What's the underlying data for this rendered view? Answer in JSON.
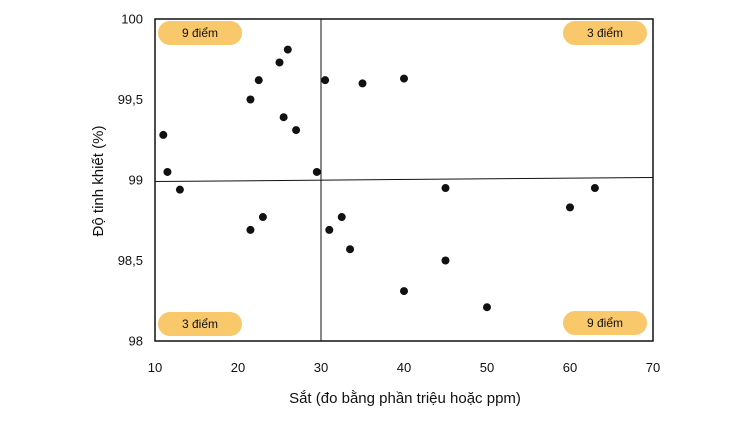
{
  "chart_data": {
    "type": "scatter",
    "xlabel": "Sắt (đo bằng phần triệu hoặc ppm)",
    "ylabel": "Độ tinh khiết (%)",
    "xlim": [
      10,
      70
    ],
    "ylim": [
      98,
      100
    ],
    "x_ticks": [
      10,
      20,
      30,
      40,
      50,
      60,
      70
    ],
    "x_tick_labels": [
      "10",
      "20",
      "30",
      "40",
      "50",
      "60",
      "70"
    ],
    "y_ticks": [
      98,
      98.5,
      99,
      99.5,
      100
    ],
    "y_tick_labels": [
      "98",
      "98,5",
      "99",
      "99,5",
      "100"
    ],
    "grid": false,
    "reference_lines": {
      "vertical_x": 30,
      "horizontal_y": 99
    },
    "points": [
      {
        "x": 11.0,
        "y": 99.28
      },
      {
        "x": 11.5,
        "y": 99.05
      },
      {
        "x": 13.0,
        "y": 98.94
      },
      {
        "x": 21.5,
        "y": 99.5
      },
      {
        "x": 22.5,
        "y": 99.62
      },
      {
        "x": 25.0,
        "y": 99.73
      },
      {
        "x": 26.0,
        "y": 99.81
      },
      {
        "x": 25.5,
        "y": 99.39
      },
      {
        "x": 27.0,
        "y": 99.31
      },
      {
        "x": 29.5,
        "y": 99.05
      },
      {
        "x": 21.5,
        "y": 98.69
      },
      {
        "x": 23.0,
        "y": 98.77
      },
      {
        "x": 30.5,
        "y": 99.62
      },
      {
        "x": 35.0,
        "y": 99.6
      },
      {
        "x": 40.0,
        "y": 99.63
      },
      {
        "x": 31.0,
        "y": 98.69
      },
      {
        "x": 32.5,
        "y": 98.77
      },
      {
        "x": 33.5,
        "y": 98.57
      },
      {
        "x": 40.0,
        "y": 98.31
      },
      {
        "x": 45.0,
        "y": 98.95
      },
      {
        "x": 45.0,
        "y": 98.5
      },
      {
        "x": 50.0,
        "y": 98.21
      },
      {
        "x": 60.0,
        "y": 98.83
      },
      {
        "x": 63.0,
        "y": 98.95
      }
    ],
    "annotations": [
      {
        "quadrant": "top-left",
        "text": "9 điểm"
      },
      {
        "quadrant": "top-right",
        "text": "3 điểm"
      },
      {
        "quadrant": "bottom-left",
        "text": "3 điểm"
      },
      {
        "quadrant": "bottom-right",
        "text": "9 điểm"
      }
    ],
    "colors": {
      "points": "#111111",
      "badge": "#F9C86B",
      "frame": "#111111"
    }
  }
}
